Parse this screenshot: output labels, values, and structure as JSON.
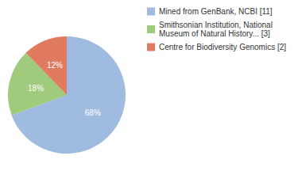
{
  "chart_data": {
    "type": "pie",
    "categories": [
      "Mined from GenBank, NCBI [11]",
      "Smithsonian Institution, National Museum of Natural History... [3]",
      "Centre for Biodiversity Genomics [2]"
    ],
    "values": [
      68,
      18,
      12
    ],
    "value_labels": [
      "68%",
      "18%",
      "12%"
    ],
    "colors": [
      "#a0bbe0",
      "#a1cb7c",
      "#e07b5f"
    ],
    "data_labels": true,
    "legend": "right"
  }
}
